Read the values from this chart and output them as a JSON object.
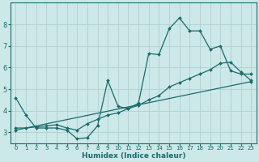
{
  "title": "",
  "xlabel": "Humidex (Indice chaleur)",
  "bg_color": "#cce8e8",
  "grid_color": "#b0d0d0",
  "line_color": "#1a6b6b",
  "xlim": [
    -0.5,
    23.5
  ],
  "ylim": [
    2.5,
    9.0
  ],
  "xticks": [
    0,
    1,
    2,
    3,
    4,
    5,
    6,
    7,
    8,
    9,
    10,
    11,
    12,
    13,
    14,
    15,
    16,
    17,
    18,
    19,
    20,
    21,
    22,
    23
  ],
  "yticks": [
    3,
    4,
    5,
    6,
    7,
    8
  ],
  "line1_x": [
    0,
    1,
    2,
    3,
    4,
    5,
    6,
    7,
    8,
    9,
    10,
    11,
    12,
    13,
    14,
    15,
    16,
    17,
    18,
    19,
    20,
    21,
    22,
    23
  ],
  "line1_y": [
    4.6,
    3.8,
    3.2,
    3.2,
    3.2,
    3.1,
    2.7,
    2.75,
    3.3,
    5.4,
    4.2,
    4.1,
    4.35,
    6.65,
    6.6,
    7.8,
    8.3,
    7.7,
    7.7,
    6.85,
    7.0,
    5.85,
    5.7,
    5.7
  ],
  "line2_x": [
    0,
    1,
    2,
    3,
    4,
    5,
    6,
    7,
    8,
    9,
    10,
    11,
    12,
    13,
    14,
    15,
    16,
    17,
    18,
    19,
    20,
    21,
    22,
    23
  ],
  "line2_y": [
    3.2,
    3.2,
    3.25,
    3.3,
    3.35,
    3.2,
    3.1,
    3.4,
    3.6,
    3.8,
    3.9,
    4.1,
    4.25,
    4.5,
    4.7,
    5.1,
    5.3,
    5.5,
    5.7,
    5.9,
    6.2,
    6.25,
    5.8,
    5.4
  ],
  "line3_x": [
    0,
    23
  ],
  "line3_y": [
    3.1,
    5.35
  ]
}
